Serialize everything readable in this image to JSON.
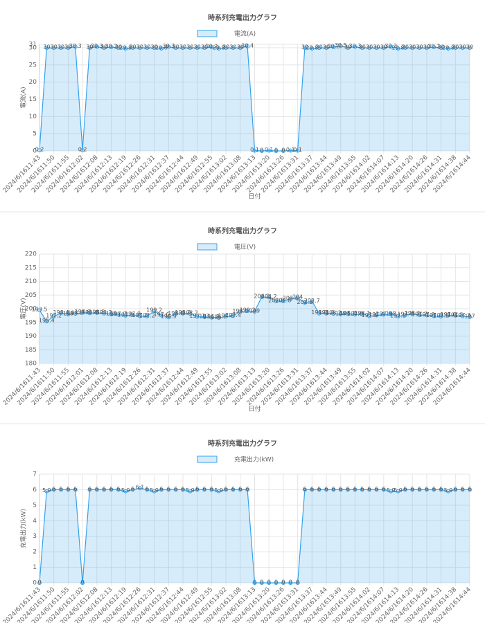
{
  "chart_data": [
    {
      "type": "line",
      "title": "時系列充電出力グラフ",
      "x_label": "日付",
      "y_label": "電流(A)",
      "grid": true,
      "fill": true,
      "categories": [
        "2024/6/1611:43",
        null,
        "2024/6/1611:50",
        null,
        "2024/6/1611:55",
        null,
        "2024/6/1612:02",
        null,
        "2024/6/1612:08",
        null,
        "2024/6/1612:13",
        null,
        "2024/6/1612:19",
        null,
        "2024/6/1612:26",
        null,
        "2024/6/1612:31",
        null,
        "2024/6/1612:37",
        null,
        "2024/6/1612:44",
        null,
        "2024/6/1612:49",
        null,
        "2024/6/1612:55",
        null,
        "2024/6/1613:02",
        null,
        "2024/6/1613:08",
        null,
        "2024/6/1613:13",
        null,
        "2024/6/1613:20",
        null,
        "2024/6/1613:26",
        null,
        "2024/6/1613:31",
        null,
        "2024/6/1613:37",
        null,
        "2024/6/1613:44",
        null,
        "2024/6/1613:49",
        null,
        "2024/6/1613:55",
        null,
        "2024/6/1614:02",
        null,
        "2024/6/1614:07",
        null,
        "2024/6/1614:13",
        null,
        "2024/6/1614:20",
        null,
        "2024/6/1614:26",
        null,
        "2024/6/1614:31",
        null,
        "2024/6/1614:38",
        null,
        "2024/6/1614:44"
      ],
      "series": [
        {
          "name": "電流(A)",
          "color": "#36a2eb",
          "values": [
            0.2,
            30,
            30,
            30,
            30,
            30.3,
            0.2,
            30,
            30.3,
            30,
            30.2,
            30,
            29.8,
            30,
            30,
            30,
            30,
            29.8,
            30.3,
            30,
            30,
            30,
            30,
            30,
            30.2,
            29.8,
            30,
            30,
            30,
            30.4,
            0.1,
            0,
            0.1,
            0,
            0,
            0.1,
            0.1,
            30,
            29.8,
            30,
            30,
            30.2,
            30.5,
            30,
            30.3,
            30,
            30,
            30,
            30,
            30.3,
            29.8,
            30,
            30,
            30,
            30,
            30.2,
            30,
            29.8,
            30,
            30,
            30
          ]
        }
      ],
      "ylim": [
        0,
        31
      ],
      "yticks": [
        0,
        5,
        10,
        15,
        20,
        25,
        30,
        31
      ]
    },
    {
      "type": "line",
      "title": "時系列充電出力グラフ",
      "x_label": "日付",
      "y_label": "電圧(V)",
      "grid": true,
      "fill": true,
      "categories": [
        "2024/6/1611:43",
        null,
        "2024/6/1611:50",
        null,
        "2024/6/1611:55",
        null,
        "2024/6/1612:01",
        null,
        "2024/6/1612:08",
        null,
        "2024/6/1612:13",
        null,
        "2024/6/1612:19",
        null,
        "2024/6/1612:26",
        null,
        "2024/6/1612:31",
        null,
        "2024/6/1612:37",
        null,
        "2024/6/1612:44",
        null,
        "2024/6/1612:49",
        null,
        "2024/6/1612:55",
        null,
        "2024/6/1613:02",
        null,
        "2024/6/1613:08",
        null,
        "2024/6/1613:13",
        null,
        "2024/6/1613:20",
        null,
        "2024/6/1613:26",
        null,
        "2024/6/1613:31",
        null,
        "2024/6/1613:37",
        null,
        "2024/6/1613:44",
        null,
        "2024/6/1613:49",
        null,
        "2024/6/1613:55",
        null,
        "2024/6/1614:02",
        null,
        "2024/6/1614:07",
        null,
        "2024/6/1614:13",
        null,
        "2024/6/1614:20",
        null,
        "2024/6/1614:26",
        null,
        "2024/6/1614:31",
        null,
        "2024/6/1614:38",
        null,
        "2024/6/1614:44"
      ],
      "series": [
        {
          "name": "電圧(V)",
          "color": "#36a2eb",
          "values": [
            199.5,
            195.4,
            197.2,
            198.4,
            198,
            198.2,
            198.6,
            198.4,
            198.5,
            198.3,
            198,
            197.9,
            197.5,
            197.8,
            197.3,
            197.2,
            199.2,
            197.6,
            196.9,
            198.1,
            198.3,
            198.2,
            197.1,
            197,
            196.8,
            196.7,
            197.2,
            197.4,
            198.9,
            199.2,
            199,
            204.3,
            204.2,
            202.8,
            202.8,
            203.6,
            204,
            202.2,
            202.7,
            198.3,
            198.3,
            198.2,
            198,
            198.1,
            197.9,
            198.1,
            197.3,
            197.6,
            197.9,
            198,
            197.2,
            197.7,
            198.1,
            197.7,
            197.6,
            197.3,
            197.2,
            197.6,
            197.5,
            197.3,
            197
          ]
        }
      ],
      "ylim": [
        180,
        220
      ],
      "yticks": [
        180,
        185,
        190,
        195,
        200,
        205,
        210,
        215,
        220
      ]
    },
    {
      "type": "line",
      "title": "時系列充電出力グラフ",
      "x_label": "日付",
      "y_label": "充電出力(kW)",
      "grid": true,
      "fill": true,
      "categories": [
        "2024/6/1611:43",
        null,
        "2024/6/1611:50",
        null,
        "2024/6/1611:55",
        null,
        "2024/6/1612:02",
        null,
        "2024/6/1612:08",
        null,
        "2024/6/1612:13",
        null,
        "2024/6/1612:19",
        null,
        "2024/6/1612:26",
        null,
        "2024/6/1612:31",
        null,
        "2024/6/1612:37",
        null,
        "2024/6/1612:44",
        null,
        "2024/6/1612:49",
        null,
        "2024/6/1612:55",
        null,
        "2024/6/1613:02",
        null,
        "2024/6/1613:08",
        null,
        "2024/6/1613:13",
        null,
        "2024/6/1613:20",
        null,
        "2024/6/1613:26",
        null,
        "2024/6/1613:31",
        null,
        "2024/6/1613:37",
        null,
        "2024/6/1613:44",
        null,
        "2024/6/1613:49",
        null,
        "2024/6/1613:55",
        null,
        "2024/6/1614:02",
        null,
        "2024/6/1614:07",
        null,
        "2024/6/1614:13",
        null,
        "2024/6/1614:20",
        null,
        "2024/6/1614:26",
        null,
        "2024/6/1614:31",
        null,
        "2024/6/1614:38",
        null,
        "2024/6/1614:44"
      ],
      "series": [
        {
          "name": "充電出力(kW)",
          "color": "#36a2eb",
          "values": [
            0,
            5.9,
            6,
            6,
            6,
            6,
            0,
            6,
            6,
            6,
            6,
            6,
            5.9,
            6,
            6.1,
            6,
            5.9,
            6,
            6,
            6,
            6,
            5.9,
            6,
            6,
            6,
            5.9,
            6,
            6,
            6,
            6,
            0,
            0,
            0,
            0,
            0,
            0,
            0,
            6,
            6,
            6,
            6,
            6,
            6,
            6,
            6,
            6,
            6,
            6,
            6,
            5.9,
            5.9,
            6,
            6,
            6,
            6,
            6,
            6,
            5.9,
            6,
            6,
            6
          ]
        }
      ],
      "ylim": [
        0,
        7
      ],
      "yticks": [
        0,
        1,
        2,
        3,
        4,
        5,
        6,
        7
      ]
    }
  ]
}
